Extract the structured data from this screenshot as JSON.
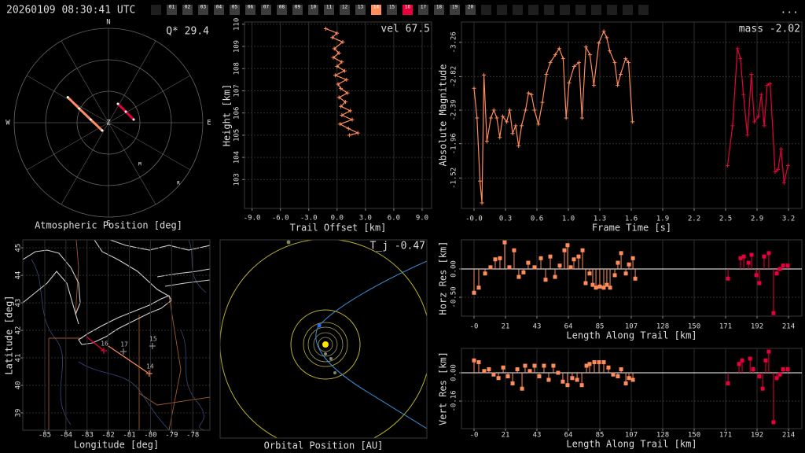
{
  "header": {
    "timestamp": "20260109 08:30:41 UTC",
    "menu": "...",
    "stations": [
      {
        "label": "01",
        "color": "#3c3c3c"
      },
      {
        "label": "02",
        "color": "#3c3c3c"
      },
      {
        "label": "03",
        "color": "#3c3c3c"
      },
      {
        "label": "04",
        "color": "#3c3c3c"
      },
      {
        "label": "05",
        "color": "#3c3c3c"
      },
      {
        "label": "06",
        "color": "#3c3c3c"
      },
      {
        "label": "07",
        "color": "#3c3c3c"
      },
      {
        "label": "08",
        "color": "#3c3c3c"
      },
      {
        "label": "09",
        "color": "#3c3c3c"
      },
      {
        "label": "10",
        "color": "#3c3c3c"
      },
      {
        "label": "11",
        "color": "#3c3c3c"
      },
      {
        "label": "12",
        "color": "#3c3c3c"
      },
      {
        "label": "13",
        "color": "#3c3c3c"
      },
      {
        "label": "14",
        "color": "#ff8c5a"
      },
      {
        "label": "15",
        "color": "#3c3c3c"
      },
      {
        "label": "16",
        "color": "#e8003c"
      },
      {
        "label": "17",
        "color": "#3c3c3c"
      },
      {
        "label": "18",
        "color": "#3c3c3c"
      },
      {
        "label": "19",
        "color": "#3c3c3c"
      },
      {
        "label": "20",
        "color": "#3c3c3c"
      }
    ]
  },
  "chart_data": [
    {
      "type": "polar",
      "title": "Atmospheric Position [deg]",
      "annotation": "Q* 29.4",
      "directions": [
        "N",
        "E",
        "S",
        "W"
      ],
      "center_label": "Z",
      "rlim": [
        0,
        90
      ],
      "rticks": [
        30,
        60,
        90
      ],
      "series": [
        {
          "color": "#ff8c5a",
          "x": [
            302.0,
            295.8,
            280.0,
            218.7
          ],
          "values": [
            45.8,
            31.1,
            17.3,
            9.6
          ]
        },
        {
          "color": "#e8003c",
          "x": [
            26.6,
            57.5,
            82.9
          ],
          "values": [
            20.1,
            19.6,
            24.2
          ]
        }
      ],
      "markers": [
        {
          "label": "M",
          "azimuth": 143,
          "zenith": 49.8
        },
        {
          "label": "R",
          "azimuth": 130.9,
          "zenith": 88.3
        }
      ]
    },
    {
      "type": "line",
      "xlabel": "Trail Offset [km]",
      "ylabel": "Height [km]",
      "annotation": "vel 67.5",
      "grid": true,
      "xlim": [
        -9.8,
        10.0
      ],
      "ylim": [
        101.7,
        110.1
      ],
      "xticks": [
        {
          "value": -9,
          "label": "-9.0"
        },
        {
          "value": -6,
          "label": "-6.0"
        },
        {
          "value": -3,
          "label": "-3.0"
        },
        {
          "value": 0,
          "label": "0.0"
        },
        {
          "value": 3,
          "label": "3.0"
        },
        {
          "value": 6,
          "label": "6.0"
        },
        {
          "value": 9,
          "label": "9.0"
        }
      ],
      "yticks": [
        103,
        104,
        105,
        106,
        107,
        108,
        109,
        110
      ],
      "series": [
        {
          "color": "#ff8c5a",
          "x": [
            -1.2,
            0.0,
            -0.5,
            0.6,
            -0.3,
            0.2,
            -0.4,
            0.5,
            0.0,
            0.8,
            -0.2,
            1.0,
            0.1,
            0.4,
            1.1,
            0.2,
            0.9,
            0.4,
            1.4,
            0.5,
            1.6,
            0.3,
            1.2,
            2.2,
            1.3
          ],
          "values": [
            109.8,
            109.6,
            109.4,
            109.2,
            108.9,
            108.7,
            108.5,
            108.3,
            108.1,
            107.9,
            107.7,
            107.5,
            107.3,
            107.1,
            106.9,
            106.7,
            106.5,
            106.3,
            106.1,
            105.9,
            105.7,
            105.5,
            105.3,
            105.1,
            105.0
          ]
        }
      ]
    },
    {
      "type": "line",
      "xlabel": "Frame Time [s]",
      "ylabel": "Absolute Magnitude",
      "annotation": "mass -2.02",
      "grid": true,
      "xlim": [
        -0.127,
        3.31
      ],
      "ylim": [
        -1.13,
        -3.52
      ],
      "xticks": [
        {
          "value": 0,
          "label": "-0.0"
        },
        {
          "value": 0.3175,
          "label": "0.3"
        },
        {
          "value": 0.635,
          "label": "0.6"
        },
        {
          "value": 0.9525,
          "label": "1.0"
        },
        {
          "value": 1.27,
          "label": "1.3"
        },
        {
          "value": 1.5875,
          "label": "1.6"
        },
        {
          "value": 1.905,
          "label": "1.9"
        },
        {
          "value": 2.2225,
          "label": "2.2"
        },
        {
          "value": 2.54,
          "label": "2.5"
        },
        {
          "value": 2.8575,
          "label": "2.9"
        },
        {
          "value": 3.175,
          "label": "3.2"
        }
      ],
      "yticks": [
        -1.52,
        -1.96,
        -2.39,
        -2.82,
        -3.26
      ],
      "series": [
        {
          "color": "#ff8c5a",
          "x": [
            0.0,
            0.03,
            0.06,
            0.08,
            0.1,
            0.13,
            0.17,
            0.2,
            0.23,
            0.26,
            0.29,
            0.33,
            0.36,
            0.39,
            0.42,
            0.45,
            0.48,
            0.52,
            0.55,
            0.58,
            0.61,
            0.65,
            0.69,
            0.73,
            0.77,
            0.82,
            0.86,
            0.9,
            0.93,
            0.96,
            1.01,
            1.06,
            1.09,
            1.13,
            1.17,
            1.21,
            1.26,
            1.31,
            1.34,
            1.37,
            1.42,
            1.45,
            1.48,
            1.53,
            1.56,
            1.6
          ],
          "values": [
            -2.67,
            -2.29,
            -1.48,
            -1.2,
            -2.84,
            -1.99,
            -2.29,
            -2.39,
            -2.29,
            -2.04,
            -2.31,
            -2.24,
            -2.39,
            -2.09,
            -2.19,
            -1.93,
            -2.19,
            -2.39,
            -2.61,
            -2.59,
            -2.39,
            -2.21,
            -2.49,
            -2.85,
            -3.0,
            -3.1,
            -3.18,
            -3.05,
            -2.29,
            -2.74,
            -2.95,
            -3.0,
            -2.29,
            -3.2,
            -3.1,
            -2.71,
            -3.25,
            -3.4,
            -3.32,
            -3.15,
            -3.0,
            -2.71,
            -2.85,
            -3.05,
            -3.0,
            -2.24
          ]
        },
        {
          "color": "#e8003c",
          "x": [
            2.56,
            2.61,
            2.66,
            2.69,
            2.72,
            2.76,
            2.8,
            2.83,
            2.87,
            2.9,
            2.93,
            2.96,
            2.99,
            3.04,
            3.07,
            3.1,
            3.13,
            3.17
          ],
          "values": [
            -1.68,
            -2.19,
            -3.18,
            -3.05,
            -2.59,
            -2.07,
            -2.85,
            -2.24,
            -2.31,
            -2.59,
            -2.19,
            -2.71,
            -2.73,
            -1.6,
            -1.63,
            -1.89,
            -1.46,
            -1.68
          ]
        }
      ]
    },
    {
      "type": "map",
      "xlabel": "Longitude [deg]",
      "ylabel": "Latitude [deg]",
      "grid": true,
      "xlim": [
        -86.04,
        -77.19
      ],
      "ylim": [
        38.37,
        45.29
      ],
      "xticks": [
        -85,
        -84,
        -83,
        -82,
        -81,
        -80,
        -79,
        -78
      ],
      "yticks": [
        39,
        40,
        41,
        42,
        43,
        44,
        45
      ],
      "stations": [
        {
          "label": "16",
          "color": "#e8003c",
          "lon": -82.21,
          "lat": 41.26
        },
        {
          "label": "17",
          "color": "#888888",
          "lon": -81.28,
          "lat": 41.23
        },
        {
          "label": "15",
          "color": "#888888",
          "lon": -79.91,
          "lat": 41.43
        },
        {
          "label": "14",
          "color": "#ff8c5a",
          "lon": -80.06,
          "lat": 40.43
        }
      ],
      "series": [
        {
          "color": "#ff8c5a",
          "x": [
            -81.99,
            -80.13
          ],
          "values": [
            41.43,
            40.46
          ]
        },
        {
          "color": "#e8003c",
          "x": [
            -82.21,
            -83.03
          ],
          "values": [
            41.26,
            41.77
          ]
        }
      ]
    },
    {
      "type": "orbit",
      "xlabel": "Orbital Position [AU]",
      "annotation": "T_j -0.47"
    },
    {
      "type": "stem",
      "xlabel": "Length Along Trail [km]",
      "ylabel": "Horz Res [km]",
      "grid": true,
      "xlim": [
        -8.54,
        222.66
      ],
      "ylim": [
        -0.833,
        0.514
      ],
      "xticks": [
        {
          "value": 0,
          "label": "-0"
        },
        {
          "value": 21.36,
          "label": "21"
        },
        {
          "value": 42.72,
          "label": "43"
        },
        {
          "value": 64.08,
          "label": "64"
        },
        {
          "value": 85.44,
          "label": "85"
        },
        {
          "value": 106.8,
          "label": "107"
        },
        {
          "value": 128.16,
          "label": "128"
        },
        {
          "value": 149.52,
          "label": "150"
        },
        {
          "value": 170.88,
          "label": "171"
        },
        {
          "value": 192.24,
          "label": "192"
        },
        {
          "value": 213.6,
          "label": "214"
        }
      ],
      "yticks": [
        {
          "value": 0,
          "label": "0.00"
        },
        {
          "value": -0.5,
          "label": "-0.50"
        }
      ],
      "series": [
        {
          "color": "#ff8c5a",
          "x": [
            0.0,
            3.2,
            7.5,
            11.2,
            14.4,
            17.6,
            20.8,
            24.0,
            27.2,
            30.4,
            33.6,
            36.8,
            41.1,
            45.4,
            48.6,
            51.8,
            55.0,
            58.2,
            61.4,
            63.5,
            65.7,
            67.8,
            71.0,
            73.7,
            75.8,
            78.5,
            80.6,
            82.8,
            85.4,
            88.1,
            90.2,
            92.4,
            95.6,
            97.7,
            99.9,
            103.1,
            105.2,
            107.9,
            109.5
          ],
          "values": [
            -0.42,
            -0.33,
            -0.08,
            0.03,
            0.17,
            0.19,
            0.47,
            0.03,
            0.33,
            -0.14,
            -0.06,
            0.11,
            0.03,
            0.19,
            -0.19,
            0.22,
            -0.14,
            0.06,
            0.33,
            0.42,
            0.03,
            0.17,
            0.22,
            0.33,
            -0.25,
            -0.08,
            -0.28,
            -0.33,
            -0.31,
            -0.33,
            -0.28,
            -0.33,
            -0.11,
            0.11,
            0.28,
            -0.08,
            0.08,
            0.19,
            -0.17
          ]
        },
        {
          "color": "#e8003c",
          "x": [
            172.5,
            181.0,
            183.2,
            186.4,
            188.5,
            191.7,
            193.8,
            197.0,
            200.2,
            203.4,
            205.6,
            207.7,
            209.9,
            213.1
          ],
          "values": [
            -0.17,
            0.19,
            0.22,
            0.11,
            0.25,
            -0.11,
            -0.25,
            0.22,
            0.28,
            -0.78,
            -0.08,
            0.0,
            0.06,
            0.06
          ]
        }
      ]
    },
    {
      "type": "stem",
      "xlabel": "Length Along Trail [km]",
      "ylabel": "Vert Res [km]",
      "grid": true,
      "xlim": [
        -8.54,
        222.66
      ],
      "ylim": [
        -0.316,
        0.138
      ],
      "xticks": [
        {
          "value": 0,
          "label": "-0"
        },
        {
          "value": 21.36,
          "label": "21"
        },
        {
          "value": 42.72,
          "label": "43"
        },
        {
          "value": 64.08,
          "label": "64"
        },
        {
          "value": 85.44,
          "label": "85"
        },
        {
          "value": 106.8,
          "label": "107"
        },
        {
          "value": 128.16,
          "label": "128"
        },
        {
          "value": 149.52,
          "label": "150"
        },
        {
          "value": 170.88,
          "label": "171"
        },
        {
          "value": 192.24,
          "label": "192"
        },
        {
          "value": 213.6,
          "label": "214"
        }
      ],
      "yticks": [
        {
          "value": 0,
          "label": "0.00"
        },
        -0.16
      ],
      "series": [
        {
          "color": "#ff8c5a",
          "x": [
            0,
            3.2,
            6.9,
            10.1,
            13.3,
            16.6,
            19.8,
            23.0,
            26.2,
            29.4,
            32.6,
            34.7,
            37.9,
            41.1,
            44.3,
            47.5,
            50.7,
            53.9,
            57.1,
            60.3,
            63.5,
            66.7,
            70.0,
            73.2,
            76.4,
            78.5,
            81.7,
            84.9,
            88.1,
            91.3,
            94.5,
            97.7,
            99.9,
            103.1,
            105.2,
            107.9
          ],
          "values": [
            0.07,
            0.06,
            0.01,
            0.02,
            -0.01,
            -0.03,
            0.03,
            -0.02,
            -0.06,
            0.02,
            -0.09,
            0.04,
            0.01,
            0.04,
            -0.02,
            0.04,
            -0.04,
            0.04,
            0.0,
            -0.05,
            -0.07,
            -0.03,
            -0.04,
            -0.07,
            0.04,
            0.05,
            0.06,
            0.06,
            0.06,
            0.03,
            -0.01,
            -0.02,
            0.02,
            -0.06,
            -0.03,
            -0.04
          ]
        },
        {
          "color": "#e8003c",
          "x": [
            172.5,
            180.0,
            182.1,
            187.5,
            189.6,
            193.8,
            196.0,
            198.1,
            200.2,
            203.4,
            205.6,
            207.7,
            209.9,
            213.1
          ],
          "values": [
            -0.06,
            0.05,
            0.07,
            0.08,
            0.02,
            -0.02,
            -0.09,
            0.07,
            0.12,
            -0.28,
            -0.03,
            -0.01,
            0.02,
            0.02
          ]
        }
      ]
    }
  ]
}
